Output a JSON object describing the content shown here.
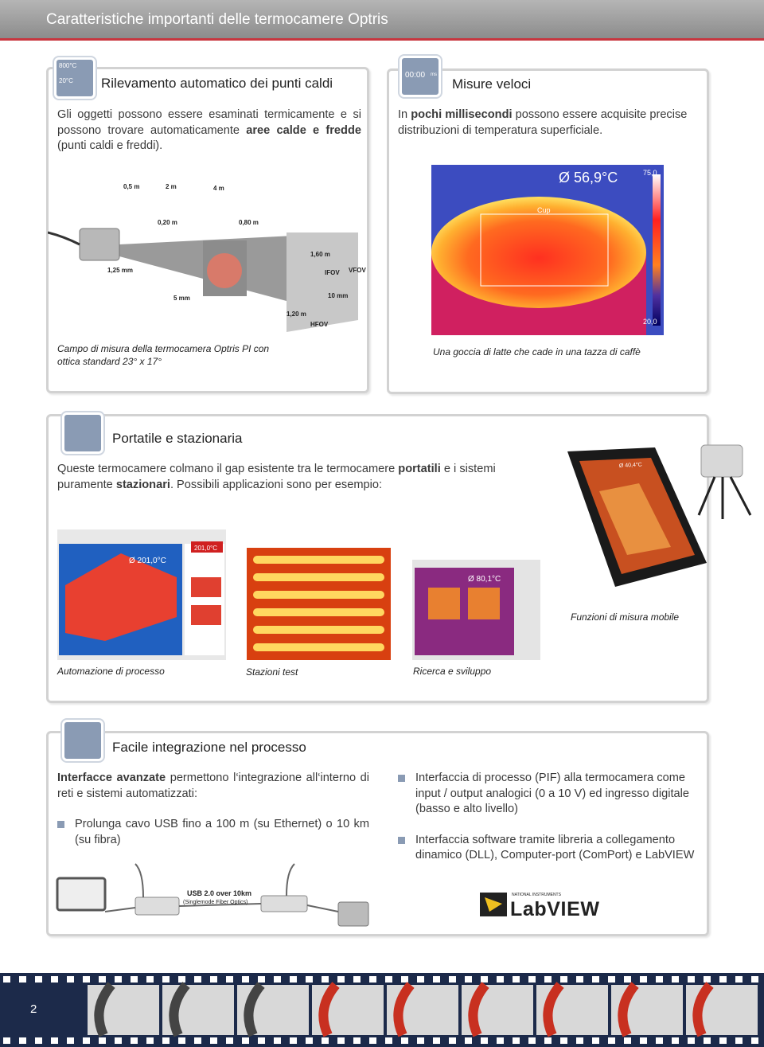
{
  "header": {
    "title": "Caratteristiche importanti delle termocamere Optris"
  },
  "sections": [
    {
      "title": "Rilevamento automatico dei punti caldi",
      "icon": [
        "800°C",
        "20°C"
      ],
      "body": [
        {
          "text": "Gli oggetti possono essere esaminati termicamente e si possono trovare automaticamente ",
          "bold": false
        },
        {
          "text": "aree calde e fredde",
          "bold": true
        },
        {
          "text": " (punti caldi e freddi).",
          "bold": false
        }
      ]
    },
    {
      "title": "Misure veloci",
      "icon": [
        "00:00",
        "ms"
      ],
      "body": [
        {
          "text": "In ",
          "bold": false
        },
        {
          "text": "pochi millisecondi",
          "bold": true
        },
        {
          "text": " possono essere acquisite precise distribuzioni di temperatura superficiale.",
          "bold": false
        }
      ]
    },
    {
      "title": "Portatile e stazionaria",
      "body": [
        {
          "text": "Queste termocamere colmano il gap esistente tra le termocamere ",
          "bold": false
        },
        {
          "text": "portatili",
          "bold": true
        },
        {
          "text": " e i sistemi puramente ",
          "bold": false
        },
        {
          "text": "stazionari",
          "bold": true
        },
        {
          "text": ". Possibili applicazioni sono per esempio:",
          "bold": false
        }
      ]
    },
    {
      "title": "Facile integrazione nel processo",
      "body": [
        {
          "text": "Interfacce avanzate",
          "bold": true
        },
        {
          "text": " permettono l‘integrazione all‘interno di reti e sistemi automatizzati:",
          "bold": false
        }
      ],
      "bullets_left": [
        "Prolunga cavo USB fino a 100 m (su Ethernet) o 10 km (su fibra)"
      ],
      "bullets_right": [
        "Interfaccia di processo (PIF) alla termocamera come input / output analogici (0 a 10 V) ed ingresso digitale (basso e alto livello)",
        "Interfaccia software tramite libreria a collegamento dinamico (DLL), Computer-port (ComPort) e LabVIEW"
      ]
    }
  ],
  "images": {
    "fov_diagram": {
      "labels": [
        "0,5 m",
        "2 m",
        "4 m",
        "0,20 m",
        "0,80 m",
        "1,25 mm",
        "1,60 m",
        "IFOV",
        "VFOV",
        "5 mm",
        "10 mm",
        "1,20 m",
        "HFOV"
      ],
      "caption": "Campo di misura della termocamera Optris PI con ottica standard 23° x 17°"
    },
    "cup": {
      "labels": [
        "Ø 56,9°C",
        "75,0",
        "20,0",
        "Cup"
      ],
      "caption": "Una goccia di latte che cade in una tazza di caffè"
    },
    "process": {
      "labels": [
        "Ø 201,0°C",
        "201,0°C"
      ],
      "caption": "Automazione di processo"
    },
    "test": {
      "caption": "Stazioni test"
    },
    "research": {
      "labels": [
        "Ø 80,1°C"
      ],
      "caption": "Ricerca e sviluppo"
    },
    "mobile": {
      "labels": [
        "Ø 40,4°C"
      ],
      "caption": "Funzioni di misura mobile"
    },
    "usb": {
      "labels": [
        "USB 2.0 over 10km",
        "(Singlemode Fiber Optics)"
      ]
    },
    "labview": {
      "labels": [
        "NATIONAL INSTRUMENTS",
        "LabVIEW"
      ]
    }
  },
  "footer": {
    "page_number": "2"
  }
}
